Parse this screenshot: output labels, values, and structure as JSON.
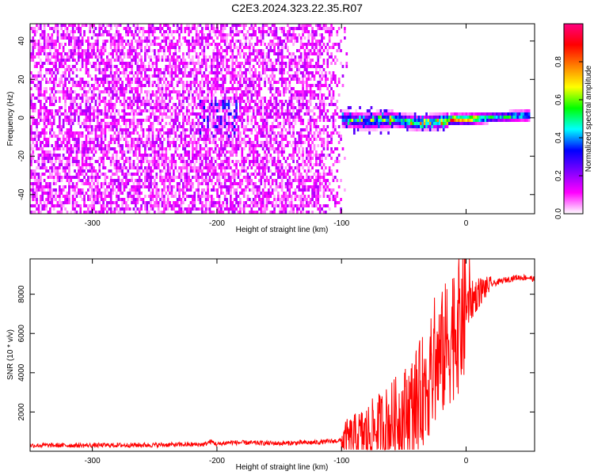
{
  "figure": {
    "title": "C2E3.2024.323.22.35.R07"
  },
  "chart_data": [
    {
      "type": "heatmap",
      "xlabel": "Height of straight line (km)",
      "ylabel": "Frequency (Hz)",
      "xlim": [
        -350,
        55
      ],
      "ylim": [
        -50,
        49
      ],
      "xticks": [
        -300,
        -200,
        -100,
        0
      ],
      "yticks": [
        -40,
        -20,
        0,
        20,
        40
      ],
      "colorbar": {
        "label": "Normalized spectral amplitude",
        "range": [
          0.0,
          1.0
        ],
        "ticks": [
          0.0,
          0.2,
          0.4,
          0.6,
          0.8
        ],
        "colors": [
          "#ffffff",
          "#ff00ff",
          "#8000ff",
          "#0000ff",
          "#00ffff",
          "#00ff00",
          "#ffff00",
          "#ff8000",
          "#ff0000",
          "#ff0080"
        ]
      },
      "noise_extent_x": [
        -350,
        -95
      ],
      "ridge": [
        {
          "x": -100,
          "y": 0,
          "amp": 0.35
        },
        {
          "x": -80,
          "y": -1,
          "amp": 0.4
        },
        {
          "x": -60,
          "y": 0,
          "amp": 0.5
        },
        {
          "x": -40,
          "y": -2,
          "amp": 0.55
        },
        {
          "x": -20,
          "y": -1,
          "amp": 0.6
        },
        {
          "x": -12,
          "y": 0,
          "amp": 0.9
        },
        {
          "x": 0,
          "y": 0,
          "amp": 0.85
        },
        {
          "x": 20,
          "y": 1,
          "amp": 0.5
        },
        {
          "x": 50,
          "y": 2,
          "amp": 0.5
        }
      ]
    },
    {
      "type": "line",
      "xlabel": "Height of straight line (km)",
      "ylabel": "SNR (10 * v/v)",
      "xlim": [
        -350,
        55
      ],
      "ylim": [
        0,
        9800
      ],
      "xticks": [
        -300,
        -200,
        -100,
        0
      ],
      "yticks": [
        2000,
        4000,
        6000,
        8000
      ],
      "color": "#ff0000",
      "series": [
        {
          "x": [
            -350,
            -300,
            -250,
            -210,
            -205,
            -200,
            -190,
            -150,
            -120,
            -100,
            -90,
            -80,
            -70,
            -60,
            -50,
            -40,
            -30,
            -25,
            -20,
            -15,
            -10,
            -5,
            0,
            10,
            20,
            30,
            40,
            50,
            55
          ],
          "y": [
            300,
            300,
            320,
            350,
            500,
            350,
            450,
            400,
            450,
            550,
            700,
            900,
            1200,
            1500,
            1900,
            2600,
            3600,
            4200,
            4800,
            5500,
            6200,
            6700,
            7300,
            8100,
            8500,
            8700,
            8850,
            8850,
            8750
          ]
        }
      ]
    }
  ]
}
